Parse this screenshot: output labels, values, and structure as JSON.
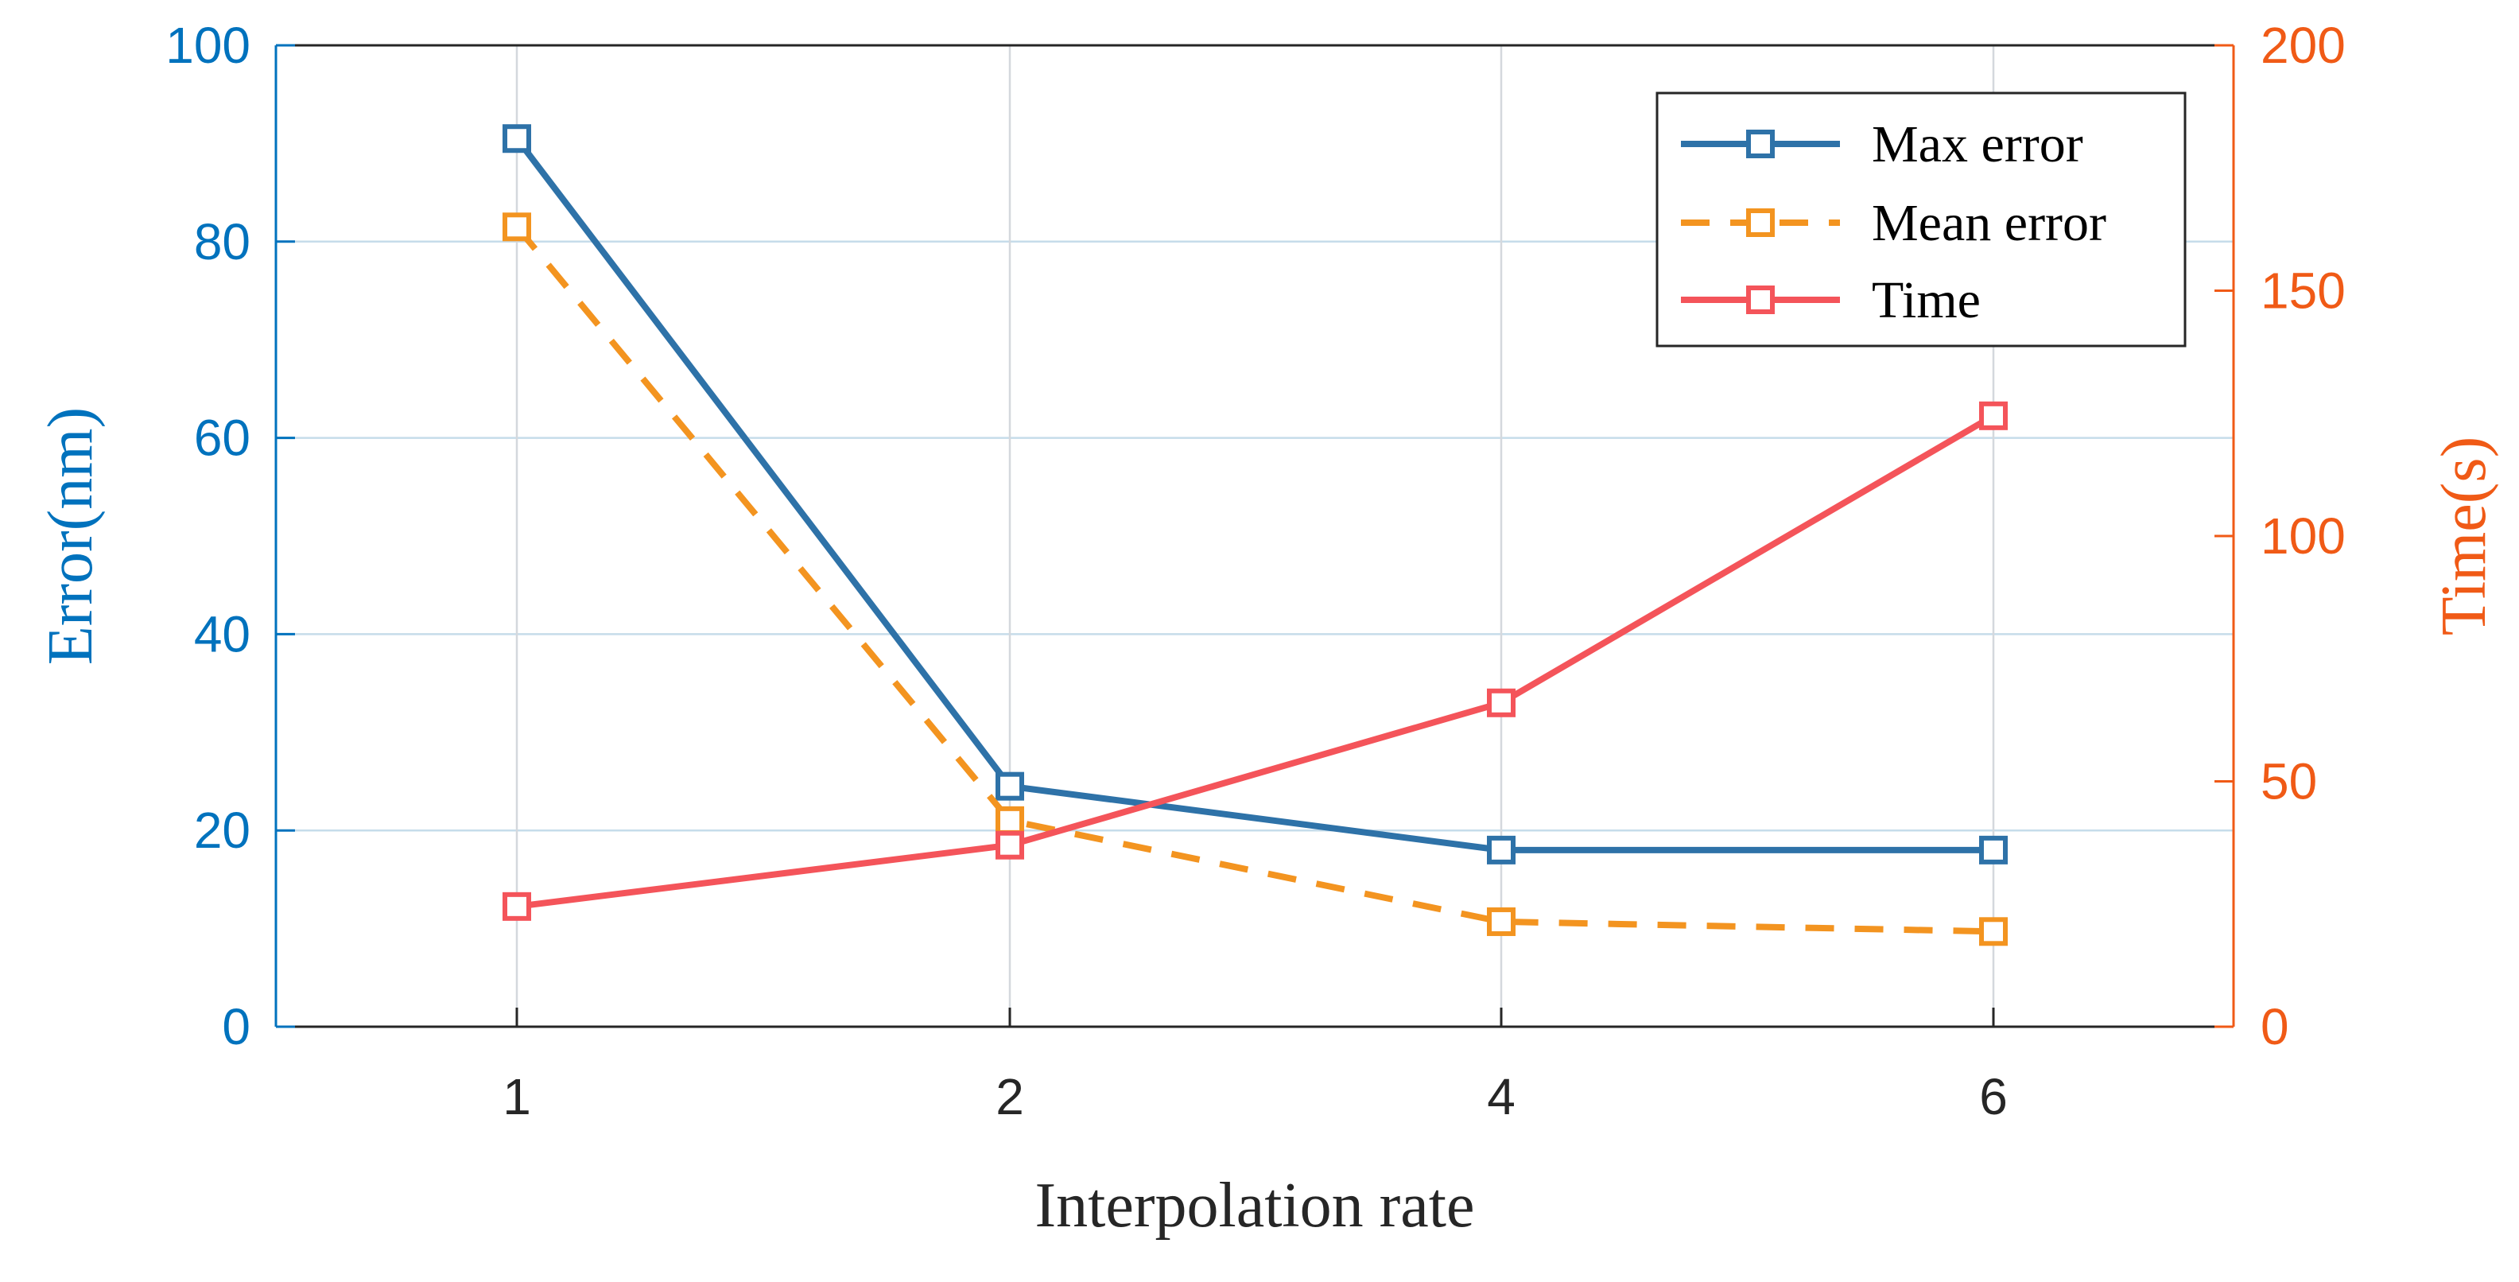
{
  "chart_data": {
    "type": "line",
    "title": "",
    "categories": [
      "1",
      "2",
      "4",
      "6"
    ],
    "xlabel": "Interpolation rate",
    "ylabel_left": "Error(nm)",
    "ylabel_right": "Time(s)",
    "ylim_left": [
      0,
      100
    ],
    "ylim_right": [
      0,
      200
    ],
    "yticks_left": [
      "0",
      "20",
      "40",
      "60",
      "80",
      "100"
    ],
    "yticks_right": [
      "0",
      "50",
      "100",
      "150",
      "200"
    ],
    "grid": true,
    "legend_position": "top-right",
    "series": [
      {
        "name": "Max error",
        "axis": "left",
        "values": [
          90.5,
          24.5,
          18,
          18
        ],
        "color": "#2E72A8",
        "line_style": "solid",
        "marker": "square"
      },
      {
        "name": "Mean error",
        "axis": "left",
        "values": [
          81.5,
          21,
          10.7,
          9.7
        ],
        "color": "#F39420",
        "line_style": "dashed",
        "marker": "square"
      },
      {
        "name": "Time",
        "axis": "right",
        "values": [
          24.5,
          37,
          66,
          124.5
        ],
        "color": "#F4545A",
        "line_style": "solid",
        "marker": "square"
      }
    ],
    "colors": {
      "left_axis": "#0072BD",
      "right_axis": "#F05A16",
      "x_axis": "#262626",
      "grid": "#C6DCEA"
    }
  }
}
